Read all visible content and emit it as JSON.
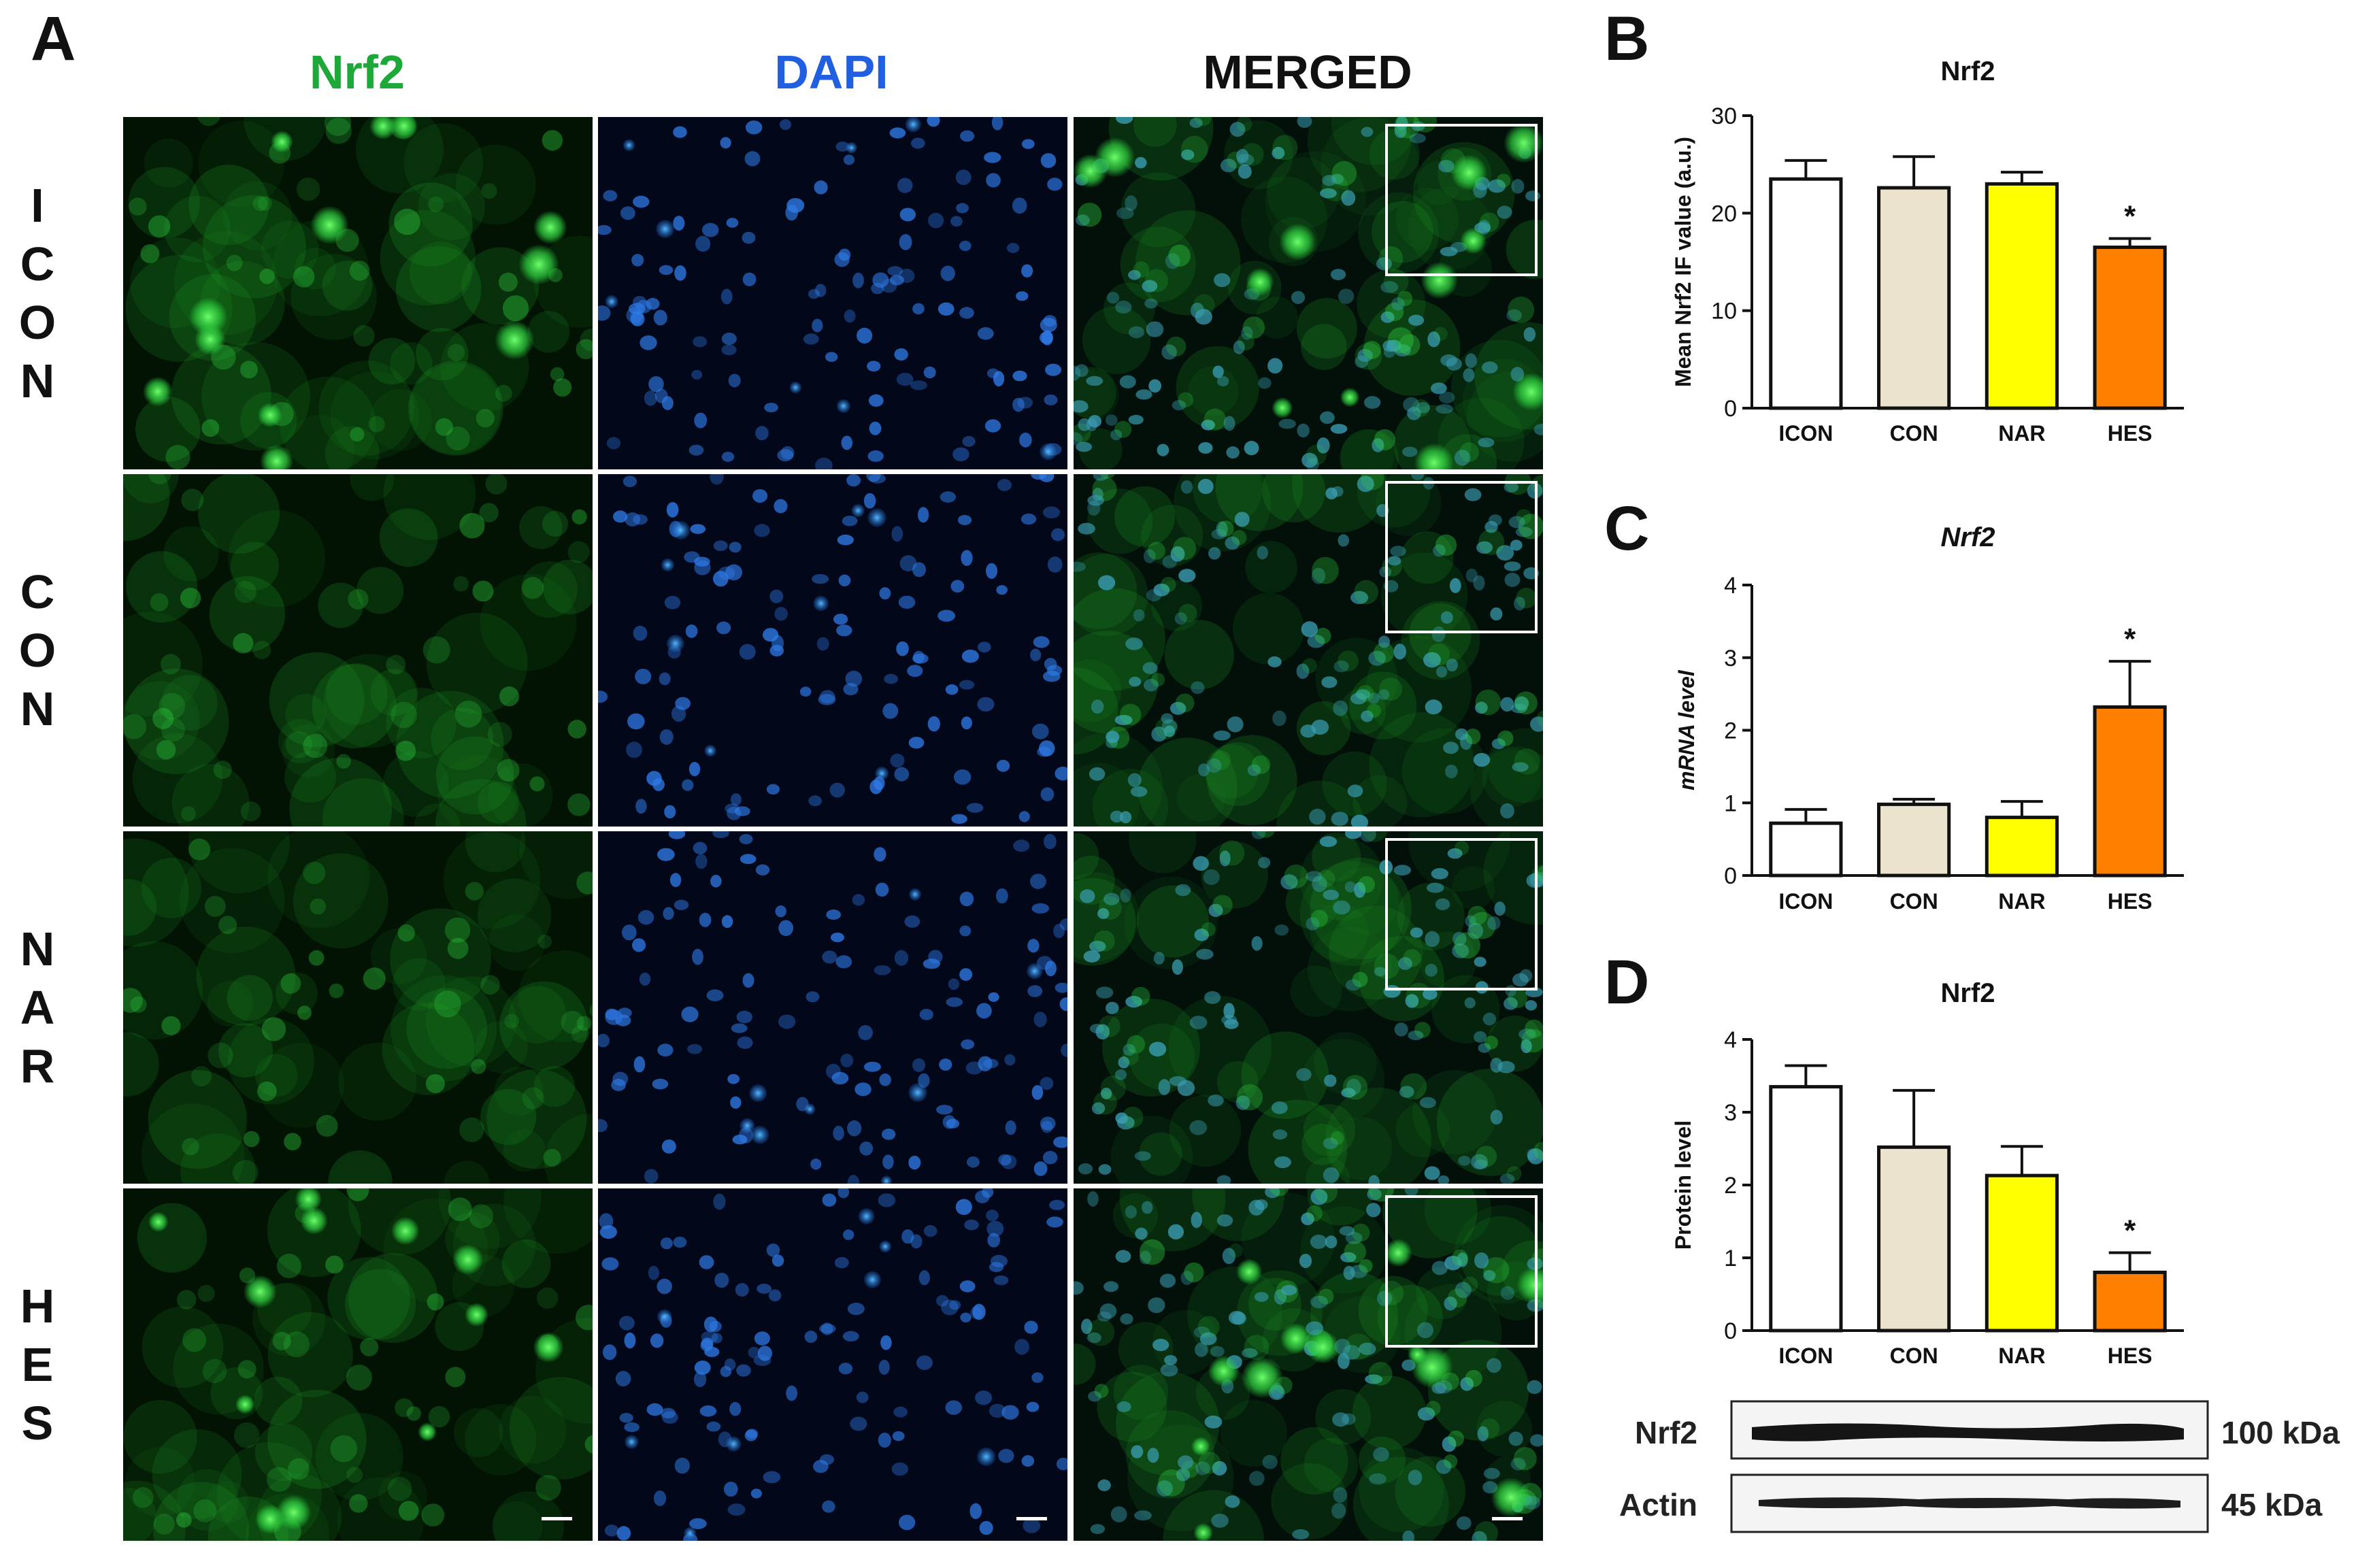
{
  "panel_a": {
    "letter": "A",
    "column_headers": [
      {
        "text": "Nrf2",
        "color": "#1fa83a"
      },
      {
        "text": "DAPI",
        "color": "#1f5fe0"
      },
      {
        "text": "MERGED",
        "color": "#111111"
      }
    ],
    "row_labels": [
      {
        "letters": [
          "I",
          "C",
          "O",
          "N"
        ]
      },
      {
        "letters": [
          "C",
          "O",
          "N"
        ]
      },
      {
        "letters": [
          "N",
          "A",
          "R"
        ]
      },
      {
        "letters": [
          "H",
          "E",
          "S"
        ]
      }
    ],
    "channel_colors": {
      "nrf2": "#2fd140",
      "dapi": "#2f7be8",
      "merged": "#36c878"
    }
  },
  "chart_data": [
    {
      "panel": "B",
      "type": "bar",
      "title": "Nrf2",
      "title_italic": false,
      "ylabel": "Mean Nrf2 IF value (a.u.)",
      "categories": [
        "ICON",
        "CON",
        "NAR",
        "HES"
      ],
      "values": [
        23.5,
        22.6,
        23.0,
        16.5
      ],
      "errors": [
        1.9,
        3.2,
        1.2,
        0.9
      ],
      "significance": [
        "",
        "",
        "",
        "*"
      ],
      "colors": [
        "#ffffff",
        "#ebe3cc",
        "#ffff00",
        "#ff7f00"
      ],
      "ylim": [
        0,
        30
      ],
      "yticks": [
        0,
        10,
        20,
        30
      ]
    },
    {
      "panel": "C",
      "type": "bar",
      "title": "Nrf2",
      "title_italic": true,
      "ylabel": "mRNA level",
      "categories": [
        "ICON",
        "CON",
        "NAR",
        "HES"
      ],
      "values": [
        0.72,
        0.98,
        0.8,
        2.32
      ],
      "errors": [
        0.19,
        0.07,
        0.22,
        0.63
      ],
      "significance": [
        "",
        "",
        "",
        "*"
      ],
      "colors": [
        "#ffffff",
        "#ebe3cc",
        "#ffff00",
        "#ff7f00"
      ],
      "ylim": [
        0,
        4
      ],
      "yticks": [
        0,
        1,
        2,
        3,
        4
      ]
    },
    {
      "panel": "D",
      "type": "bar",
      "title": "Nrf2",
      "title_italic": false,
      "ylabel": "Protein level",
      "categories": [
        "ICON",
        "CON",
        "NAR",
        "HES"
      ],
      "values": [
        3.35,
        2.52,
        2.13,
        0.8
      ],
      "errors": [
        0.29,
        0.78,
        0.4,
        0.27
      ],
      "significance": [
        "",
        "",
        "",
        "*"
      ],
      "colors": [
        "#ffffff",
        "#ebe3cc",
        "#ffff00",
        "#ff7f00"
      ],
      "ylim": [
        0,
        4
      ],
      "yticks": [
        0,
        1,
        2,
        3,
        4
      ]
    }
  ],
  "western_blot": {
    "rows": [
      {
        "label": "Nrf2",
        "size": "100 kDa"
      },
      {
        "label": "Actin",
        "size": "45 kDa"
      }
    ]
  }
}
